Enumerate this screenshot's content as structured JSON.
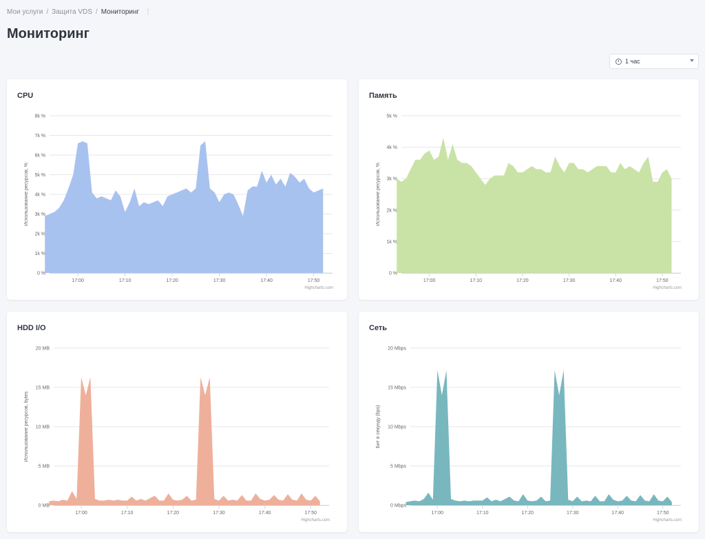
{
  "breadcrumb": {
    "items": [
      "Мои услуги",
      "Защита VDS"
    ],
    "separator": "/",
    "current": "Мониторинг",
    "more": "⋮"
  },
  "page": {
    "title": "Мониторинг"
  },
  "period": {
    "label": "1 час"
  },
  "credits": "Highcharts.com",
  "chart_data": [
    {
      "id": "cpu",
      "type": "area",
      "title": "CPU",
      "ylabel": "Использование ресурсов, %",
      "ylim": [
        0,
        8000
      ],
      "yticks": [
        0,
        1000,
        2000,
        3000,
        4000,
        5000,
        6000,
        7000,
        8000
      ],
      "ytick_labels": [
        "0 %",
        "1k %",
        "2k %",
        "3k %",
        "4k %",
        "5k %",
        "6k %",
        "7k %",
        "8k %"
      ],
      "xlim": [
        16.9,
        17.9
      ],
      "xticks": [
        17.0,
        17.1667,
        17.3333,
        17.5,
        17.6667,
        17.8333
      ],
      "xtick_labels": [
        "17:00",
        "17:10",
        "17:20",
        "17:30",
        "17:40",
        "17:50"
      ],
      "color": "#a8c2ef",
      "x": [
        "16:53",
        "16:54",
        "16:55",
        "16:56",
        "16:57",
        "16:58",
        "16:59",
        "17:00",
        "17:01",
        "17:02",
        "17:03",
        "17:04",
        "17:05",
        "17:06",
        "17:07",
        "17:08",
        "17:09",
        "17:10",
        "17:11",
        "17:12",
        "17:13",
        "17:14",
        "17:15",
        "17:16",
        "17:17",
        "17:18",
        "17:19",
        "17:20",
        "17:21",
        "17:22",
        "17:23",
        "17:24",
        "17:25",
        "17:26",
        "17:27",
        "17:28",
        "17:29",
        "17:30",
        "17:31",
        "17:32",
        "17:33",
        "17:34",
        "17:35",
        "17:36",
        "17:37",
        "17:38",
        "17:39",
        "17:40",
        "17:41",
        "17:42",
        "17:43",
        "17:44",
        "17:45",
        "17:46",
        "17:47",
        "17:48",
        "17:49",
        "17:50",
        "17:51",
        "17:52"
      ],
      "values": [
        2900,
        3000,
        3100,
        3300,
        3700,
        4300,
        5000,
        6600,
        6700,
        6600,
        4100,
        3800,
        3900,
        3800,
        3700,
        4200,
        3900,
        3100,
        3600,
        4300,
        3400,
        3600,
        3500,
        3600,
        3700,
        3400,
        3900,
        4000,
        4100,
        4200,
        4300,
        4100,
        4300,
        6500,
        6700,
        4300,
        4100,
        3600,
        4000,
        4100,
        4000,
        3500,
        2900,
        4200,
        4400,
        4400,
        5200,
        4600,
        5000,
        4500,
        4800,
        4400,
        5100,
        4900,
        4600,
        4800,
        4300,
        4100,
        4200,
        4300
      ]
    },
    {
      "id": "memory",
      "type": "area",
      "title": "Память",
      "ylabel": "Использование ресурсов, %",
      "ylim": [
        0,
        5000
      ],
      "yticks": [
        0,
        1000,
        2000,
        3000,
        4000,
        5000
      ],
      "ytick_labels": [
        "0 %",
        "1k %",
        "2k %",
        "3k %",
        "4k %",
        "5k %"
      ],
      "xlim": [
        16.9,
        17.9
      ],
      "xticks": [
        17.0,
        17.1667,
        17.3333,
        17.5,
        17.6667,
        17.8333
      ],
      "xtick_labels": [
        "17:00",
        "17:10",
        "17:20",
        "17:30",
        "17:40",
        "17:50"
      ],
      "color": "#c9e3a6",
      "x": [
        "16:53",
        "16:54",
        "16:55",
        "16:56",
        "16:57",
        "16:58",
        "16:59",
        "17:00",
        "17:01",
        "17:02",
        "17:03",
        "17:04",
        "17:05",
        "17:06",
        "17:07",
        "17:08",
        "17:09",
        "17:10",
        "17:11",
        "17:12",
        "17:13",
        "17:14",
        "17:15",
        "17:16",
        "17:17",
        "17:18",
        "17:19",
        "17:20",
        "17:21",
        "17:22",
        "17:23",
        "17:24",
        "17:25",
        "17:26",
        "17:27",
        "17:28",
        "17:29",
        "17:30",
        "17:31",
        "17:32",
        "17:33",
        "17:34",
        "17:35",
        "17:36",
        "17:37",
        "17:38",
        "17:39",
        "17:40",
        "17:41",
        "17:42",
        "17:43",
        "17:44",
        "17:45",
        "17:46",
        "17:47",
        "17:48",
        "17:49",
        "17:50",
        "17:51",
        "17:52"
      ],
      "values": [
        3000,
        2900,
        3000,
        3300,
        3600,
        3600,
        3800,
        3900,
        3600,
        3700,
        4300,
        3600,
        4100,
        3600,
        3500,
        3500,
        3400,
        3200,
        3000,
        2800,
        3000,
        3100,
        3100,
        3100,
        3500,
        3400,
        3200,
        3200,
        3300,
        3400,
        3300,
        3300,
        3200,
        3200,
        3700,
        3400,
        3200,
        3500,
        3500,
        3300,
        3300,
        3200,
        3300,
        3400,
        3400,
        3400,
        3200,
        3200,
        3500,
        3300,
        3400,
        3300,
        3200,
        3500,
        3700,
        2900,
        2900,
        3200,
        3300,
        3000
      ]
    },
    {
      "id": "hdd",
      "type": "area",
      "title": "HDD I/O",
      "ylabel": "Использование ресурсов, bytes",
      "ylim": [
        0,
        20
      ],
      "yticks": [
        0,
        5,
        10,
        15,
        20
      ],
      "ytick_labels": [
        "0 MB",
        "5 MB",
        "10 MB",
        "15 MB",
        "20 MB"
      ],
      "xlim": [
        16.9,
        17.9
      ],
      "xticks": [
        17.0,
        17.1667,
        17.3333,
        17.5,
        17.6667,
        17.8333
      ],
      "xtick_labels": [
        "17:00",
        "17:10",
        "17:20",
        "17:30",
        "17:40",
        "17:50"
      ],
      "color": "#eeb09a",
      "x": [
        "16:53",
        "16:54",
        "16:55",
        "16:56",
        "16:57",
        "16:58",
        "16:59",
        "17:00",
        "17:01",
        "17:02",
        "17:03",
        "17:04",
        "17:05",
        "17:06",
        "17:07",
        "17:08",
        "17:09",
        "17:10",
        "17:11",
        "17:12",
        "17:13",
        "17:14",
        "17:15",
        "17:16",
        "17:17",
        "17:18",
        "17:19",
        "17:20",
        "17:21",
        "17:22",
        "17:23",
        "17:24",
        "17:25",
        "17:26",
        "17:27",
        "17:28",
        "17:29",
        "17:30",
        "17:31",
        "17:32",
        "17:33",
        "17:34",
        "17:35",
        "17:36",
        "17:37",
        "17:38",
        "17:39",
        "17:40",
        "17:41",
        "17:42",
        "17:43",
        "17:44",
        "17:45",
        "17:46",
        "17:47",
        "17:48",
        "17:49",
        "17:50",
        "17:51",
        "17:52"
      ],
      "values": [
        0.5,
        0.6,
        0.5,
        0.7,
        0.6,
        1.8,
        0.8,
        16.3,
        14.0,
        16.3,
        0.8,
        0.6,
        0.6,
        0.7,
        0.6,
        0.7,
        0.6,
        0.6,
        1.1,
        0.6,
        0.8,
        0.6,
        0.9,
        1.2,
        0.6,
        0.6,
        1.5,
        0.7,
        0.6,
        0.7,
        1.2,
        0.6,
        0.7,
        16.3,
        14.0,
        16.3,
        0.8,
        0.6,
        1.2,
        0.6,
        0.7,
        0.6,
        1.3,
        0.6,
        0.6,
        1.5,
        0.8,
        0.6,
        0.7,
        1.3,
        0.7,
        0.6,
        1.4,
        0.7,
        0.6,
        1.5,
        0.7,
        0.6,
        1.2,
        0.5
      ]
    },
    {
      "id": "network",
      "type": "area",
      "title": "Сеть",
      "ylabel": "Бит в секунду (bps)",
      "ylim": [
        0,
        20
      ],
      "yticks": [
        0,
        5,
        10,
        15,
        20
      ],
      "ytick_labels": [
        "0 Mbps",
        "5 Mbps",
        "10 Mbps",
        "15 Mbps",
        "20 Mbps"
      ],
      "xlim": [
        16.9,
        17.9
      ],
      "xticks": [
        17.0,
        17.1667,
        17.3333,
        17.5,
        17.6667,
        17.8333
      ],
      "xtick_labels": [
        "17:00",
        "17:10",
        "17:20",
        "17:30",
        "17:40",
        "17:50"
      ],
      "color": "#79b7bf",
      "x": [
        "16:53",
        "16:54",
        "16:55",
        "16:56",
        "16:57",
        "16:58",
        "16:59",
        "17:00",
        "17:01",
        "17:02",
        "17:03",
        "17:04",
        "17:05",
        "17:06",
        "17:07",
        "17:08",
        "17:09",
        "17:10",
        "17:11",
        "17:12",
        "17:13",
        "17:14",
        "17:15",
        "17:16",
        "17:17",
        "17:18",
        "17:19",
        "17:20",
        "17:21",
        "17:22",
        "17:23",
        "17:24",
        "17:25",
        "17:26",
        "17:27",
        "17:28",
        "17:29",
        "17:30",
        "17:31",
        "17:32",
        "17:33",
        "17:34",
        "17:35",
        "17:36",
        "17:37",
        "17:38",
        "17:39",
        "17:40",
        "17:41",
        "17:42",
        "17:43",
        "17:44",
        "17:45",
        "17:46",
        "17:47",
        "17:48",
        "17:49",
        "17:50",
        "17:51",
        "17:52"
      ],
      "values": [
        0.4,
        0.5,
        0.6,
        0.5,
        0.8,
        1.6,
        0.7,
        17.2,
        14.0,
        17.2,
        0.8,
        0.6,
        0.5,
        0.6,
        0.5,
        0.6,
        0.6,
        0.6,
        1.0,
        0.5,
        0.7,
        0.5,
        0.8,
        1.1,
        0.6,
        0.5,
        1.4,
        0.6,
        0.5,
        0.6,
        1.1,
        0.5,
        0.6,
        17.2,
        14.0,
        17.2,
        0.7,
        0.5,
        1.1,
        0.5,
        0.6,
        0.5,
        1.2,
        0.5,
        0.5,
        1.4,
        0.7,
        0.5,
        0.6,
        1.2,
        0.6,
        0.5,
        1.3,
        0.6,
        0.5,
        1.4,
        0.6,
        0.5,
        1.1,
        0.4
      ]
    }
  ]
}
